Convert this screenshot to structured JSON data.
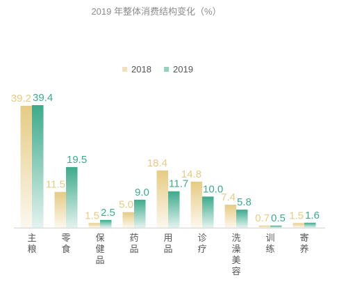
{
  "chart_data": {
    "type": "bar",
    "title": "2019 年整体消费结构变化（%）",
    "categories": [
      "主粮",
      "零食",
      "保健品",
      "药品",
      "用品",
      "诊疗",
      "洗澡美容",
      "训练",
      "寄养"
    ],
    "series": [
      {
        "name": "2018",
        "values": [
          39.2,
          11.5,
          1.5,
          5.0,
          18.4,
          14.8,
          7.4,
          0.7,
          1.5
        ],
        "labels": [
          "39.2",
          "11.5",
          "1.5",
          "5.0",
          "18.4",
          "14.8",
          "7.4",
          "0.7",
          "1.5"
        ],
        "color": "#e6cb83"
      },
      {
        "name": "2019",
        "values": [
          39.4,
          19.5,
          2.5,
          9.0,
          11.7,
          10.0,
          5.8,
          0.5,
          1.6
        ],
        "labels": [
          "39.4",
          "19.5",
          "2.5",
          "9.0",
          "11.7",
          "10.0",
          "5.8",
          "0.5",
          "1.6"
        ],
        "color": "#3caa8b"
      }
    ],
    "grid": false,
    "legend_position": "top"
  }
}
